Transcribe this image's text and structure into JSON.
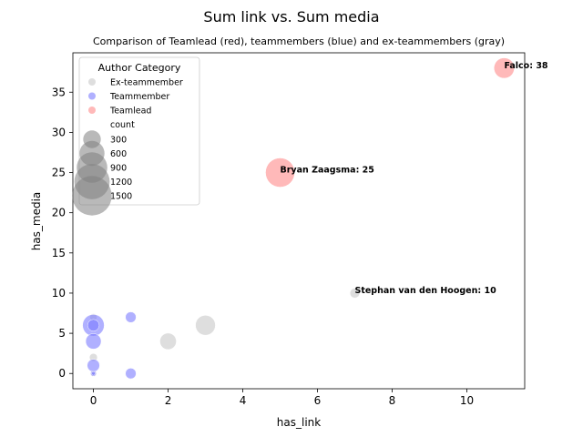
{
  "chart_data": {
    "type": "scatter",
    "title": "Sum link vs. Sum media",
    "subtitle": "Comparison of Teamlead (red), teammembers (blue) and ex-teammembers (gray)",
    "xlabel": "has_link",
    "ylabel": "has_media",
    "xlim": [
      -0.55,
      11.55
    ],
    "ylim": [
      -1.9,
      39.9
    ],
    "xticks": [
      0,
      2,
      4,
      6,
      8,
      10
    ],
    "yticks": [
      0,
      5,
      10,
      15,
      20,
      25,
      30,
      35
    ],
    "grid": false,
    "legend": {
      "placement": "top-left",
      "title": "Author Category",
      "hue_entries": [
        {
          "label": "Ex-teammember",
          "color": "#c8c8c8"
        },
        {
          "label": "Teammember",
          "color": "#7b7bff"
        },
        {
          "label": "Teamlead",
          "color": "#ff8a8a"
        }
      ],
      "size_title": "count",
      "size_entries": [
        {
          "label": "300",
          "count": 300
        },
        {
          "label": "600",
          "count": 600
        },
        {
          "label": "900",
          "count": 900
        },
        {
          "label": "1200",
          "count": 1200
        },
        {
          "label": "1500",
          "count": 1500
        }
      ]
    },
    "series": [
      {
        "name": "Ex-teammember",
        "color": "#c8c8c8",
        "points": [
          {
            "x": 7,
            "y": 10,
            "count": 90
          },
          {
            "x": 3,
            "y": 6,
            "count": 380
          },
          {
            "x": 2,
            "y": 4,
            "count": 260
          },
          {
            "x": 0,
            "y": 2,
            "count": 60
          },
          {
            "x": 0,
            "y": 7,
            "count": 50
          },
          {
            "x": 0,
            "y": 0,
            "count": 40
          }
        ]
      },
      {
        "name": "Teammember",
        "color": "#7b7bff",
        "points": [
          {
            "x": 0,
            "y": 6,
            "count": 450
          },
          {
            "x": 0,
            "y": 6,
            "count": 130
          },
          {
            "x": 0,
            "y": 4,
            "count": 230
          },
          {
            "x": 0,
            "y": 1,
            "count": 150
          },
          {
            "x": 1,
            "y": 7,
            "count": 110
          },
          {
            "x": 1,
            "y": 0,
            "count": 110
          },
          {
            "x": 0,
            "y": 0,
            "count": 30
          },
          {
            "x": 0,
            "y": 0,
            "count": 12
          }
        ]
      },
      {
        "name": "Teamlead",
        "color": "#ff8a8a",
        "points": [
          {
            "x": 5,
            "y": 25,
            "count": 820
          },
          {
            "x": 11,
            "y": 38,
            "count": 400
          }
        ]
      }
    ],
    "annotations": [
      {
        "text": "Falco: 38",
        "x": 11,
        "y": 38
      },
      {
        "text": "Bryan Zaagsma: 25",
        "x": 5,
        "y": 25
      },
      {
        "text": "Stephan van den Hoogen: 10",
        "x": 7,
        "y": 10
      }
    ]
  }
}
